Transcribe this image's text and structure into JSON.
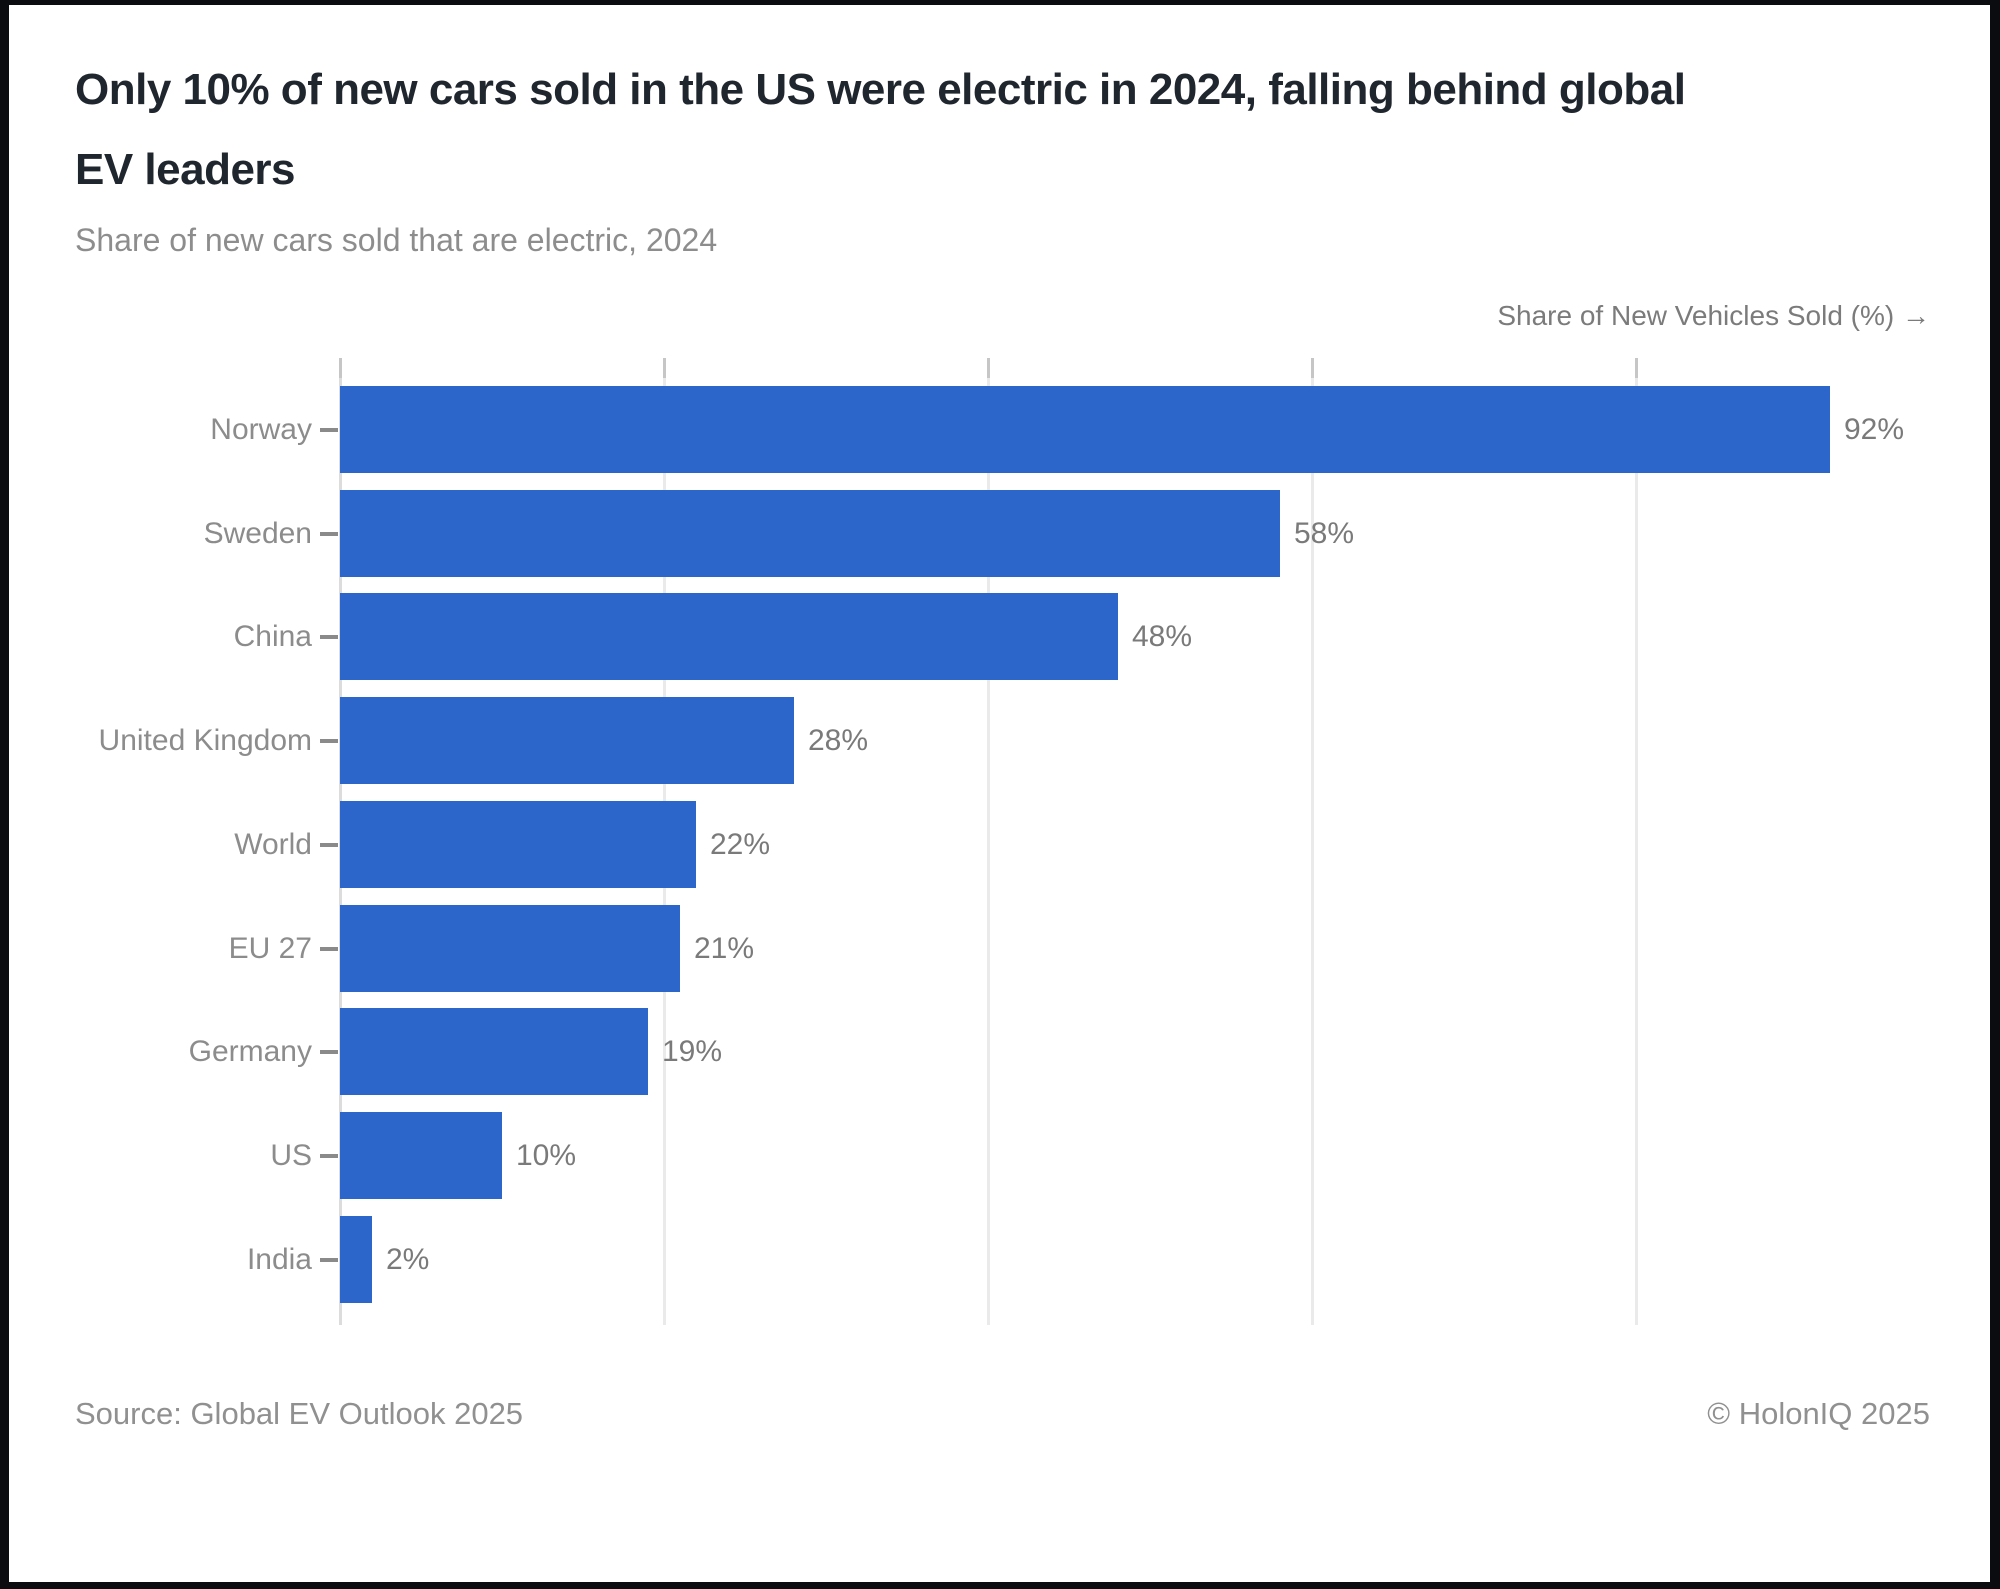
{
  "header": {
    "title_lines": [
      "Only 10% of new cars sold in the US were electric in 2024, falling behind global",
      "EV leaders"
    ],
    "subtitle": "Share of new cars sold that are electric, 2024"
  },
  "chart_data": {
    "type": "bar",
    "orientation": "horizontal",
    "title": "Only 10% of new cars sold in the US were electric in 2024, falling behind global EV leaders",
    "subtitle": "Share of new cars sold that are electric, 2024",
    "xlabel": "Share of New Vehicles Sold (%) →",
    "categories": [
      "Norway",
      "Sweden",
      "China",
      "United Kingdom",
      "World",
      "EU 27",
      "Germany",
      "US",
      "India"
    ],
    "values": [
      92,
      58,
      48,
      28,
      22,
      21,
      19,
      10,
      2
    ],
    "value_labels": [
      "92%",
      "58%",
      "48%",
      "28%",
      "22%",
      "21%",
      "19%",
      "10%",
      "2%"
    ],
    "xlim": [
      0,
      98
    ],
    "gridlines": [
      0,
      20,
      40,
      60,
      80
    ],
    "grid": true,
    "legend": "none",
    "bar_color": "#2c66cb"
  },
  "footer": {
    "source": "Source: Global EV Outlook 2025",
    "copyright": "© HolonIQ 2025"
  },
  "colors": {
    "bar": "#2c66cb",
    "title_text": "#1f262e",
    "subtitle_text": "#8d8d8d",
    "label_text": "#8c8c8c",
    "value_text": "#7a7a7a",
    "gridline": "#eaeaea",
    "axis_line": "#dcdcdc",
    "card_background": "#ffffff",
    "frame": "#0a0c10"
  }
}
